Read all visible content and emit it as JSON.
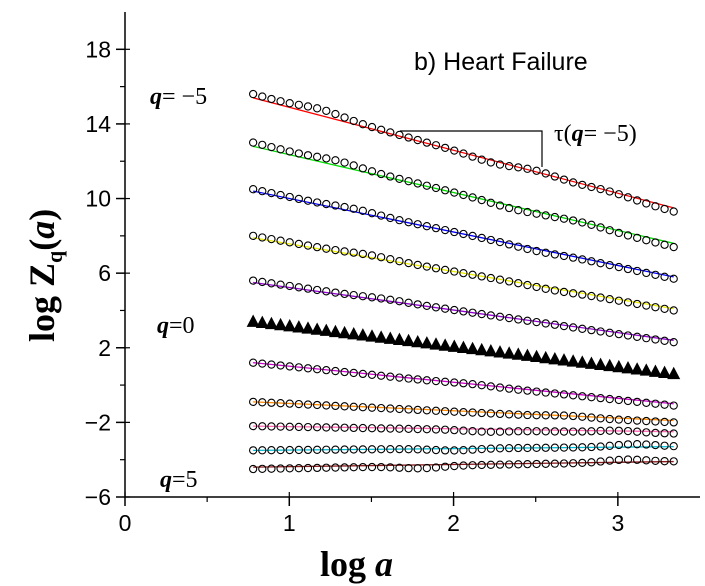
{
  "chart_data": {
    "type": "scatter",
    "title": "b)  Heart Failure",
    "xlabel": "log a",
    "ylabel": "log Z_q(a)",
    "xlim": [
      0,
      3.5
    ],
    "ylim": [
      -6,
      20
    ],
    "xticks": [
      0,
      1,
      2,
      3
    ],
    "xtick_labels": [
      "0",
      "1",
      "2",
      "3"
    ],
    "yticks": [
      -6,
      -2,
      2,
      6,
      10,
      14,
      18
    ],
    "ytick_labels": [
      "−6",
      "−2",
      "2",
      "6",
      "10",
      "14",
      "18"
    ],
    "grid": false,
    "annotations": {
      "q_neg5": {
        "prefix": "q",
        "text": "= −5"
      },
      "q_zero": {
        "prefix": "q",
        "text": "=0"
      },
      "q_pos5": {
        "prefix": "q",
        "text": "=5"
      },
      "tau": {
        "symbol": "τ(",
        "q": "q",
        "rest": "= −5)"
      }
    },
    "series": [
      {
        "q": -5,
        "marker": "circle",
        "fit_color": "#ff0000",
        "y_start": 15.6,
        "y_end": 9.3,
        "fit_start": 15.4,
        "fit_end": 9.5,
        "wobble": [
          [
            1.2,
            0.2
          ],
          [
            2.25,
            -0.12
          ],
          [
            2.5,
            0.15
          ],
          [
            2.95,
            0.12
          ]
        ]
      },
      {
        "q": -4,
        "marker": "circle",
        "fit_color": "#00dd00",
        "y_start": 13.0,
        "y_end": 7.4,
        "fit_start": 12.8,
        "fit_end": 7.6,
        "wobble": [
          [
            1.3,
            0.15
          ],
          [
            2.35,
            -0.1
          ],
          [
            2.8,
            0.1
          ]
        ]
      },
      {
        "q": -3,
        "marker": "circle",
        "fit_color": "#0000ff",
        "y_start": 10.5,
        "y_end": 5.7,
        "fit_start": 10.4,
        "fit_end": 5.8,
        "wobble": [
          [
            1.4,
            0.1
          ],
          [
            2.5,
            -0.08
          ]
        ]
      },
      {
        "q": -2,
        "marker": "circle",
        "fit_color": "#eeee00",
        "y_start": 8.0,
        "y_end": 4.0,
        "fit_start": 7.9,
        "fit_end": 4.1,
        "wobble": [
          [
            1.5,
            0.08
          ],
          [
            2.6,
            -0.06
          ]
        ]
      },
      {
        "q": -1,
        "marker": "circle",
        "fit_color": "#9400d3",
        "y_start": 5.6,
        "y_end": 2.3,
        "fit_start": 5.5,
        "fit_end": 2.4,
        "wobble": [
          [
            1.6,
            0.05
          ]
        ]
      },
      {
        "q": 0,
        "marker": "triangle",
        "fit_color": "#000000",
        "y_start": 3.4,
        "y_end": 0.6,
        "fit_start": 3.4,
        "fit_end": 0.6,
        "wobble": []
      },
      {
        "q": 1,
        "marker": "circle",
        "fit_color": "#cc00cc",
        "y_start": 1.2,
        "y_end": -1.1,
        "fit_start": 1.2,
        "fit_end": -1.0,
        "wobble": [
          [
            2.1,
            0.05
          ]
        ]
      },
      {
        "q": 2,
        "marker": "circle",
        "fit_color": "#ff8c00",
        "y_start": -0.9,
        "y_end": -2.0,
        "fit_start": -0.9,
        "fit_end": -1.9,
        "wobble": [
          [
            2.7,
            0.08
          ]
        ]
      },
      {
        "q": 3,
        "marker": "circle",
        "fit_color": "#ff69b4",
        "y_start": -2.2,
        "y_end": -2.6,
        "fit_start": -2.2,
        "fit_end": -2.5,
        "wobble": [
          [
            2.2,
            -0.08
          ],
          [
            3.0,
            0.1
          ]
        ]
      },
      {
        "q": 4,
        "marker": "circle",
        "fit_color": "#00bcd4",
        "y_start": -3.5,
        "y_end": -3.3,
        "fit_start": -3.5,
        "fit_end": -3.3,
        "wobble": [
          [
            2.0,
            -0.1
          ],
          [
            3.1,
            0.15
          ]
        ]
      },
      {
        "q": 5,
        "marker": "circle",
        "fit_color": "#8b1a1a",
        "y_start": -4.5,
        "y_end": -4.1,
        "fit_start": -4.4,
        "fit_end": -4.1,
        "wobble": [
          [
            1.8,
            -0.12
          ],
          [
            3.05,
            0.15
          ]
        ]
      }
    ],
    "x_points": {
      "start": 0.78,
      "end": 3.34,
      "count": 47
    }
  }
}
